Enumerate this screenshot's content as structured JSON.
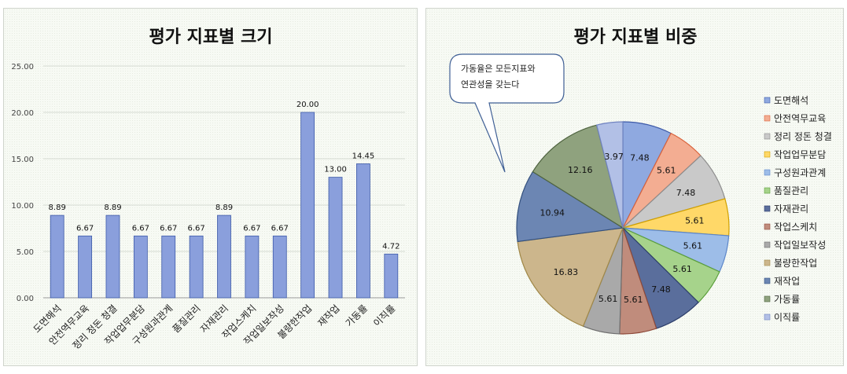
{
  "chart_data": [
    {
      "type": "bar",
      "title": "평가 지표별 크기",
      "categories": [
        "도면해석",
        "안전역무교육",
        "정리 정돈 청결",
        "작업업무분담",
        "구성원과관계",
        "품질관리",
        "자재관리",
        "작업스케치",
        "작업일보작성",
        "불량한작업",
        "재작업",
        "가동률",
        "이직률"
      ],
      "values": [
        8.89,
        6.67,
        8.89,
        6.67,
        6.67,
        6.67,
        8.89,
        6.67,
        6.67,
        20.0,
        13.0,
        14.45,
        4.72
      ],
      "value_labels": [
        "8.89",
        "6.67",
        "8.89",
        "6.67",
        "6.67",
        "6.67",
        "8.89",
        "6.67",
        "6.67",
        "20.00",
        "13.00",
        "14.45",
        "4.72"
      ],
      "yticks": [
        "0.00",
        "5.00",
        "10.00",
        "15.00",
        "20.00",
        "25.00"
      ],
      "ylim": [
        0,
        25
      ],
      "grid": true,
      "bar_color": "#8a9fdc",
      "bar_edge": "#3d5aa8"
    },
    {
      "type": "pie",
      "title": "평가 지표별 비중",
      "categories": [
        "도면해석",
        "안전역무교육",
        "정리 정돈 청결",
        "작업업무분담",
        "구성원과관계",
        "품질관리",
        "자재관리",
        "작업스케치",
        "작업일보작성",
        "불량한작업",
        "재작업",
        "가동률",
        "이직률"
      ],
      "values": [
        7.48,
        5.61,
        7.48,
        5.61,
        5.61,
        5.61,
        7.48,
        5.61,
        5.61,
        16.83,
        10.94,
        12.16,
        3.97
      ],
      "value_labels": [
        "7.48",
        "5.61",
        "7.48",
        "5.61",
        "5.61",
        "5.61",
        "7.48",
        "5.61",
        "5.61",
        "16.83",
        "10.94",
        "12.16",
        "3.97"
      ],
      "colors": [
        "#8fa9e0",
        "#f3ad92",
        "#c9c9c9",
        "#ffd868",
        "#9dbde8",
        "#a6d38b",
        "#5a6e9c",
        "#c08c7c",
        "#a9a9a9",
        "#ccb68c",
        "#6c86b3",
        "#8fa27e",
        "#b2c0e6"
      ],
      "edge_colors": [
        "#3d5aa8",
        "#d9623b",
        "#8c8c8c",
        "#d0a000",
        "#5c86c9",
        "#5a9e3a",
        "#2c3d6a",
        "#8f4a3a",
        "#6e6e6e",
        "#a08848",
        "#33507e",
        "#4e633f",
        "#7083c0"
      ],
      "legend": "right",
      "annotation": [
        "가동율은 모든지표와",
        "연관성을 갖는다"
      ]
    }
  ]
}
